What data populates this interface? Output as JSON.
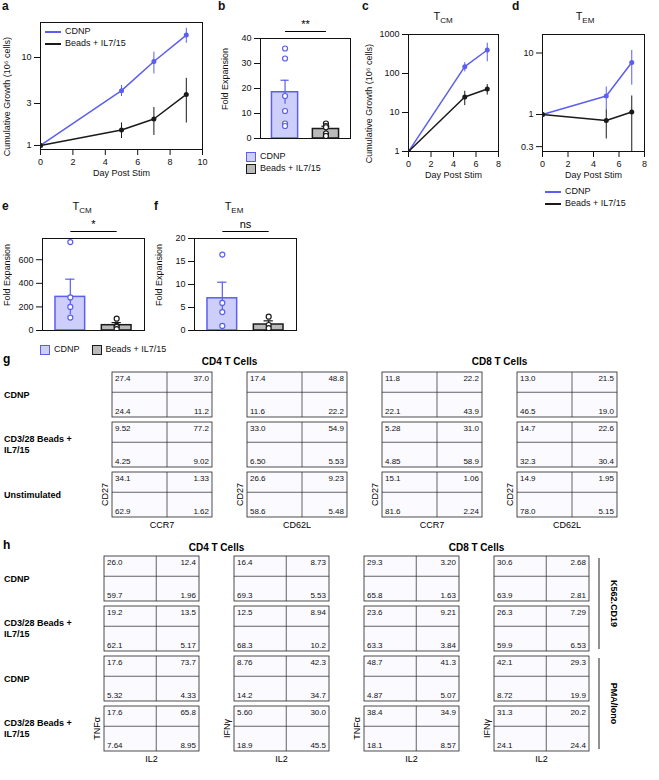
{
  "chart_data": [
    {
      "panel": "a",
      "type": "line",
      "x_label": "Day Post Stim",
      "y_label": "Cumulative Growth (10⁶ cells)",
      "log": "y",
      "x": [
        0,
        5,
        7,
        9
      ],
      "xlim": [
        0,
        10
      ],
      "xticks": [
        0,
        2,
        4,
        6,
        8,
        10
      ],
      "ylim": [
        0.9,
        25
      ],
      "yticks": [
        1,
        3,
        10
      ],
      "legend": "top-left",
      "series": [
        {
          "name": "CDNP",
          "color": "#5b5ef0",
          "marker": "circle",
          "values": [
            1,
            4.2,
            9,
            18
          ],
          "errors": [
            0,
            0.6,
            2.5,
            3.5
          ]
        },
        {
          "name": "Beads + IL7/15",
          "color": "#1a1a1a",
          "marker": "circle",
          "values": [
            1,
            1.5,
            2.0,
            3.8
          ],
          "errors": [
            0,
            0.3,
            0.7,
            2.0
          ]
        }
      ]
    },
    {
      "panel": "b",
      "type": "bar",
      "y_label": "Fold Expansion",
      "categories": [
        "CDNP",
        "Beads + IL7/15"
      ],
      "colors": [
        "#5b5ef0",
        "#1a1a1a"
      ],
      "values": [
        18.5,
        3.8
      ],
      "errors": [
        4.8,
        1.1
      ],
      "points": [
        [
          36,
          32,
          17,
          11,
          6,
          5
        ],
        [
          6,
          5,
          4.5,
          2,
          1,
          1
        ]
      ],
      "ylim": [
        0,
        40
      ],
      "yticks": [
        0,
        10,
        20,
        30,
        40
      ],
      "tick_labels": "y",
      "annotation": "**",
      "legend": "bottom"
    },
    {
      "panel": "c",
      "type": "line",
      "title": "TCM",
      "x_label": "Day Post Stim",
      "y_label": "Cumulative Growth (10⁶ cells)",
      "log": "y",
      "x": [
        0,
        5,
        7
      ],
      "xlim": [
        0,
        8
      ],
      "xticks": [
        0,
        2,
        4,
        6,
        8
      ],
      "ylim": [
        1,
        1000
      ],
      "yticks": [
        1,
        10,
        100,
        1000
      ],
      "series": [
        {
          "name": "CDNP",
          "color": "#5b5ef0",
          "marker": "circle",
          "values": [
            1,
            150,
            400
          ],
          "errors": [
            0,
            40,
            200
          ]
        },
        {
          "name": "Beads + IL7/15",
          "color": "#1a1a1a",
          "marker": "circle",
          "values": [
            1,
            25,
            40
          ],
          "errors": [
            0,
            10,
            12
          ]
        }
      ]
    },
    {
      "panel": "d",
      "type": "line",
      "title": "TEM",
      "x_label": "Day Post Stim",
      "log": "y",
      "x": [
        0,
        5,
        7
      ],
      "xlim": [
        0,
        8
      ],
      "xticks": [
        0,
        2,
        4,
        6,
        8
      ],
      "ylim": [
        0.25,
        20
      ],
      "yticks": [
        0.3,
        1,
        10
      ],
      "legend": "bottom",
      "series": [
        {
          "name": "CDNP",
          "color": "#5b5ef0",
          "marker": "circle",
          "values": [
            1,
            2.0,
            7
          ],
          "errors": [
            0,
            0.8,
            4
          ]
        },
        {
          "name": "Beads + IL7/15",
          "color": "#1a1a1a",
          "marker": "circle",
          "values": [
            1,
            0.8,
            1.1
          ],
          "errors": [
            0,
            0.4,
            0.9
          ]
        }
      ]
    },
    {
      "panel": "e",
      "type": "bar",
      "title": "TCM",
      "y_label": "Fold Expansion",
      "categories": [
        "CDNP",
        "Beads + IL7/15"
      ],
      "colors": [
        "#5b5ef0",
        "#1a1a1a"
      ],
      "values": [
        285,
        45
      ],
      "errors": [
        150,
        22
      ],
      "points": [
        [
          750,
          280,
          200,
          110
        ],
        [
          100,
          40,
          30,
          12
        ]
      ],
      "ylim": [
        0,
        780
      ],
      "yticks": [
        0,
        200,
        400,
        600
      ],
      "tick_labels": "y",
      "annotation": "*",
      "legend": "bottom"
    },
    {
      "panel": "f",
      "type": "bar",
      "title": "TEM",
      "y_label": "Fold Expansion",
      "categories": [
        "CDNP",
        "Beads + IL7/15"
      ],
      "colors": [
        "#5b5ef0",
        "#1a1a1a"
      ],
      "values": [
        7,
        1.3
      ],
      "errors": [
        3.5,
        0.8
      ],
      "points": [
        [
          16.5,
          6,
          4,
          1
        ],
        [
          3,
          1.2,
          0.5
        ]
      ],
      "ylim": [
        0,
        20
      ],
      "yticks": [
        0,
        5,
        10,
        15,
        20
      ],
      "tick_labels": "y",
      "annotation": "ns"
    }
  ],
  "flow_figures": [
    {
      "panel": "g",
      "column_groups": [
        "CD4 T Cells",
        "CD8 T Cells"
      ],
      "columns": [
        {
          "x_label": "CCR7",
          "y_label": "CD27"
        },
        {
          "x_label": "CD62L",
          "y_label": "CD27"
        },
        {
          "x_label": "CCR7",
          "y_label": "CD27"
        },
        {
          "x_label": "CD62L",
          "y_label": "CD27"
        }
      ],
      "rows": [
        {
          "label": "CDNP",
          "quadrants": [
            [
              "27.4",
              "37.0",
              "24.4",
              "11.2"
            ],
            [
              "17.4",
              "48.8",
              "11.6",
              "22.2"
            ],
            [
              "11.8",
              "22.2",
              "22.1",
              "43.9"
            ],
            [
              "13.0",
              "21.5",
              "46.5",
              "19.0"
            ]
          ]
        },
        {
          "label": "CD3/28 Beads + IL7/15",
          "quadrants": [
            [
              "9.52",
              "77.2",
              "4.25",
              "9.02"
            ],
            [
              "33.0",
              "54.9",
              "6.50",
              "5.53"
            ],
            [
              "5.28",
              "31.0",
              "4.85",
              "58.9"
            ],
            [
              "14.7",
              "22.6",
              "32.3",
              "30.4"
            ]
          ]
        },
        {
          "label": "Unstimulated",
          "quadrants": [
            [
              "34.1",
              "1.33",
              "62.9",
              "1.62"
            ],
            [
              "26.6",
              "9.23",
              "58.6",
              "5.48"
            ],
            [
              "15.1",
              "1.06",
              "81.6",
              "2.24"
            ],
            [
              "14.9",
              "1.95",
              "78.0",
              "5.15"
            ]
          ]
        }
      ]
    },
    {
      "panel": "h",
      "column_groups": [
        "CD4 T Cells",
        "CD8 T Cells"
      ],
      "columns": [
        {
          "x_label": "IL2",
          "y_label": "TNFα"
        },
        {
          "x_label": "IL2",
          "y_label": "IFNγ"
        },
        {
          "x_label": "IL2",
          "y_label": "TNFα"
        },
        {
          "x_label": "IL2",
          "y_label": "IFNγ"
        }
      ],
      "rows": [
        {
          "label": "CDNP",
          "stimulus": "K562.CD19",
          "quadrants": [
            [
              "26.0",
              "12.4",
              "59.7",
              "1.96"
            ],
            [
              "16.4",
              "8.73",
              "69.3",
              "5.53"
            ],
            [
              "29.3",
              "3.20",
              "65.8",
              "1.63"
            ],
            [
              "30.6",
              "2.68",
              "63.9",
              "2.81"
            ]
          ]
        },
        {
          "label": "CD3/28 Beads + IL7/15",
          "stimulus": "K562.CD19",
          "quadrants": [
            [
              "19.2",
              "13.5",
              "62.1",
              "5.17"
            ],
            [
              "12.5",
              "8.94",
              "68.3",
              "10.2"
            ],
            [
              "23.6",
              "9.21",
              "63.3",
              "3.84"
            ],
            [
              "26.3",
              "7.29",
              "59.9",
              "6.53"
            ]
          ]
        },
        {
          "label": "CDNP",
          "stimulus": "PMA/Iono",
          "quadrants": [
            [
              "17.6",
              "73.7",
              "5.32",
              "4.33"
            ],
            [
              "8.76",
              "42.3",
              "14.2",
              "34.7"
            ],
            [
              "48.7",
              "41.3",
              "4.87",
              "5.07"
            ],
            [
              "42.1",
              "29.3",
              "8.72",
              "19.9"
            ]
          ]
        },
        {
          "label": "CD3/28 Beads + IL7/15",
          "stimulus": "PMA/Iono",
          "quadrants": [
            [
              "17.6",
              "65.8",
              "7.64",
              "8.95"
            ],
            [
              "5.60",
              "30.0",
              "18.9",
              "45.5"
            ],
            [
              "38.4",
              "34.9",
              "18.1",
              "8.57"
            ],
            [
              "31.3",
              "20.2",
              "24.1",
              "24.4"
            ]
          ]
        }
      ]
    }
  ]
}
